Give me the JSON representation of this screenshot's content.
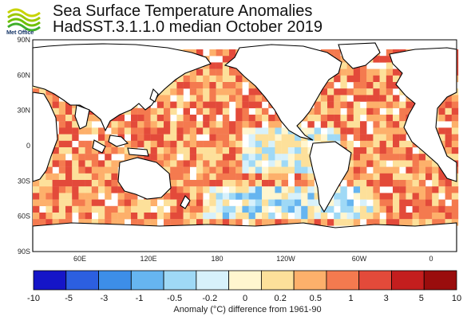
{
  "header": {
    "logo_text": "Met Office",
    "title_line1": "Sea Surface Temperature Anomalies",
    "title_line2": "HadSST.3.1.1.0 median October 2019"
  },
  "map": {
    "lat_labels": [
      "90N",
      "60N",
      "30N",
      "0",
      "30S",
      "60S",
      "90S"
    ],
    "lon_labels": [
      "60E",
      "120E",
      "180",
      "120W",
      "60W",
      "0"
    ]
  },
  "colorbar": {
    "tick_labels": [
      "-10",
      "-5",
      "-3",
      "-1",
      "-0.5",
      "-0.2",
      "0",
      "0.2",
      "0.5",
      "1",
      "3",
      "5",
      "10"
    ],
    "colors": [
      "#1515c8",
      "#2c5fe0",
      "#3d8ee8",
      "#66b5f0",
      "#9fd9f6",
      "#d7f1fb",
      "#fff6cf",
      "#fde09a",
      "#fdb06b",
      "#f47a4f",
      "#e34a3a",
      "#c41e1e",
      "#9a0d0d"
    ],
    "title": "Anomaly (°C) difference from 1961-90"
  },
  "colors": {
    "land": "#ffffff",
    "coast": "#000000",
    "frame": "#000000"
  }
}
